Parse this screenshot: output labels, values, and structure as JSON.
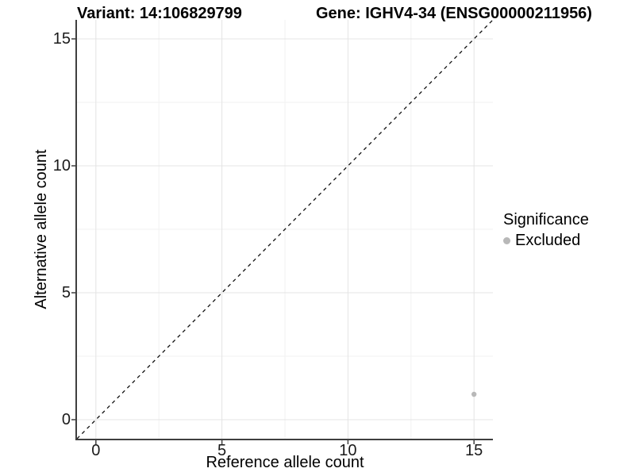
{
  "header": {
    "variant_title": "Variant: 14:106829799",
    "gene_title": "Gene: IGHV4-34 (ENSG00000211956)"
  },
  "legend": {
    "title": "Significance",
    "items": [
      {
        "label": "Excluded",
        "color": "#b8b8b8"
      }
    ]
  },
  "chart_data": {
    "type": "scatter",
    "title_left": "Variant: 14:106829799",
    "title_right": "Gene: IGHV4-34 (ENSG00000211956)",
    "xlabel": "Reference allele count",
    "ylabel": "Alternative allele count",
    "xlim": [
      -0.75,
      15.75
    ],
    "ylim": [
      -0.75,
      15.75
    ],
    "x_ticks": [
      0,
      5,
      10,
      15
    ],
    "y_ticks": [
      0,
      5,
      10,
      15
    ],
    "x_minor_ticks": [
      2.5,
      7.5,
      12.5
    ],
    "y_minor_ticks": [
      2.5,
      7.5,
      12.5
    ],
    "grid": true,
    "legend_position": "right",
    "series": [
      {
        "name": "Excluded",
        "color": "#b8b8b8",
        "points": [
          {
            "x": 15,
            "y": 1
          }
        ]
      }
    ],
    "reference_line": {
      "type": "abline",
      "slope": 1,
      "intercept": 0,
      "style": "dashed",
      "color": "#111111"
    }
  },
  "colors": {
    "background": "#ffffff",
    "axis_line": "#3f3f3f",
    "axis_text": "#1a1a1a",
    "grid_major": "#e4e4e4",
    "grid_minor": "#f2f2f2"
  }
}
